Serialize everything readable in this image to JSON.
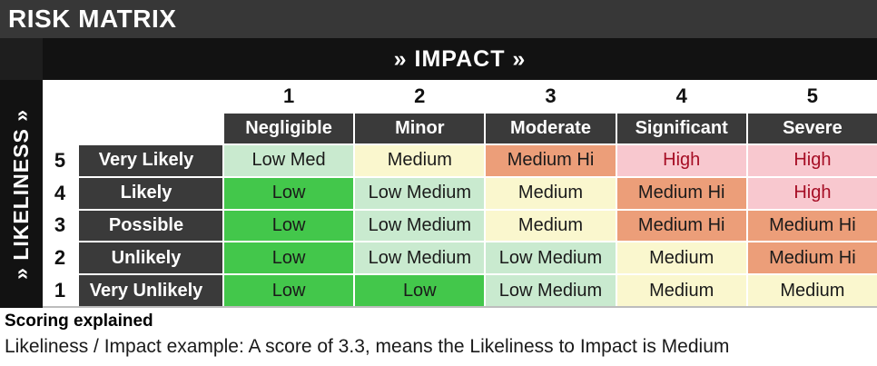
{
  "title": "RISK MATRIX",
  "impact_axis_label": "» IMPACT »",
  "likeliness_axis_label": "» LIKELINESS »",
  "columns": [
    {
      "number": "1",
      "label": "Negligible"
    },
    {
      "number": "2",
      "label": "Minor"
    },
    {
      "number": "3",
      "label": "Moderate"
    },
    {
      "number": "4",
      "label": "Significant"
    },
    {
      "number": "5",
      "label": "Severe"
    }
  ],
  "rows": [
    {
      "number": "5",
      "label": "Very Likely",
      "cells": [
        {
          "text": "Low Med",
          "level": "low-med"
        },
        {
          "text": "Medium",
          "level": "medium"
        },
        {
          "text": "Medium Hi",
          "level": "medium-hi"
        },
        {
          "text": "High",
          "level": "high"
        },
        {
          "text": "High",
          "level": "high"
        }
      ]
    },
    {
      "number": "4",
      "label": "Likely",
      "cells": [
        {
          "text": "Low",
          "level": "low"
        },
        {
          "text": "Low Medium",
          "level": "low-med"
        },
        {
          "text": "Medium",
          "level": "medium"
        },
        {
          "text": "Medium Hi",
          "level": "medium-hi"
        },
        {
          "text": "High",
          "level": "high"
        }
      ]
    },
    {
      "number": "3",
      "label": "Possible",
      "cells": [
        {
          "text": "Low",
          "level": "low"
        },
        {
          "text": "Low Medium",
          "level": "low-med"
        },
        {
          "text": "Medium",
          "level": "medium"
        },
        {
          "text": "Medium Hi",
          "level": "medium-hi"
        },
        {
          "text": "Medium Hi",
          "level": "medium-hi"
        }
      ]
    },
    {
      "number": "2",
      "label": "Unlikely",
      "cells": [
        {
          "text": "Low",
          "level": "low"
        },
        {
          "text": "Low Medium",
          "level": "low-med"
        },
        {
          "text": "Low Medium",
          "level": "low-med"
        },
        {
          "text": "Medium",
          "level": "medium"
        },
        {
          "text": "Medium Hi",
          "level": "medium-hi"
        }
      ]
    },
    {
      "number": "1",
      "label": "Very Unlikely",
      "cells": [
        {
          "text": "Low",
          "level": "low"
        },
        {
          "text": "Low",
          "level": "low"
        },
        {
          "text": "Low Medium",
          "level": "low-med"
        },
        {
          "text": "Medium",
          "level": "medium"
        },
        {
          "text": "Medium",
          "level": "medium"
        }
      ]
    }
  ],
  "footer": {
    "heading": "Scoring explained",
    "example": "Likeliness / Impact example: A score of 3.3, means the Likeliness to Impact is Medium"
  },
  "colors": {
    "title_bar": "#373737",
    "axis_band": "#121212",
    "header_cell": "#3A3A3A",
    "low": "#43C74B",
    "low_medium": "#C9EACF",
    "medium": "#FAF7CE",
    "medium_hi": "#EC9E79",
    "high_bg": "#F8C8CF",
    "high_text": "#A60E25"
  },
  "chart_data": {
    "type": "heatmap",
    "title": "RISK MATRIX",
    "xlabel": "» IMPACT »",
    "ylabel": "» LIKELINESS »",
    "x_categories": [
      "1 Negligible",
      "2 Minor",
      "3 Moderate",
      "4 Significant",
      "5 Severe"
    ],
    "y_categories": [
      "5 Very Likely",
      "4 Likely",
      "3 Possible",
      "2 Unlikely",
      "1 Very Unlikely"
    ],
    "values": [
      [
        "Low Med",
        "Medium",
        "Medium Hi",
        "High",
        "High"
      ],
      [
        "Low",
        "Low Medium",
        "Medium",
        "Medium Hi",
        "High"
      ],
      [
        "Low",
        "Low Medium",
        "Medium",
        "Medium Hi",
        "Medium Hi"
      ],
      [
        "Low",
        "Low Medium",
        "Low Medium",
        "Medium",
        "Medium Hi"
      ],
      [
        "Low",
        "Low",
        "Low Medium",
        "Medium",
        "Medium"
      ]
    ],
    "level_scale": [
      "Low",
      "Low Medium",
      "Medium",
      "Medium Hi",
      "High"
    ],
    "annotation": "A score of 3.3 means the Likeliness to Impact is Medium"
  }
}
